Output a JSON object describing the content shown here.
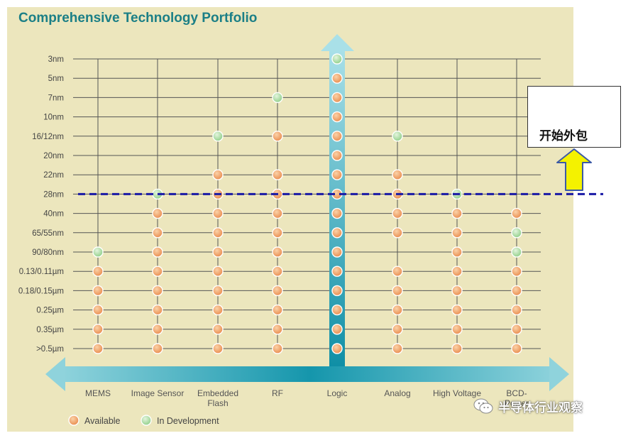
{
  "chart_data": {
    "type": "scatter",
    "title": "Comprehensive Technology Portfolio",
    "xlabel": "",
    "ylabel": "",
    "categories": [
      "MEMS",
      "Image Sensor",
      "Embedded\nFlash",
      "RF",
      "Logic",
      "Analog",
      "High Voltage",
      "BCD-\nPower"
    ],
    "nodes": [
      "3nm",
      "5nm",
      "7nm",
      "10nm",
      "16/12nm",
      "20nm",
      "22nm",
      "28nm",
      "40nm",
      "65/55nm",
      "90/80nm",
      "0.13/0.11µm",
      "0.18/0.15µm",
      "0.25µm",
      "0.35µm",
      ">0.5µm"
    ],
    "legend": [
      {
        "key": "available",
        "label": "Available"
      },
      {
        "key": "dev",
        "label": "In Development"
      }
    ],
    "legend_position": "bottom-left",
    "matrix": {
      "MEMS": [
        "",
        "",
        "",
        "",
        "",
        "",
        "",
        "",
        "",
        "",
        "dev",
        "available",
        "available",
        "available",
        "available",
        "available"
      ],
      "Image Sensor": [
        "",
        "",
        "",
        "",
        "",
        "",
        "",
        "dev",
        "available",
        "available",
        "available",
        "available",
        "available",
        "available",
        "available",
        "available"
      ],
      "Embedded\nFlash": [
        "",
        "",
        "",
        "",
        "dev",
        "",
        "available",
        "available",
        "available",
        "available",
        "available",
        "available",
        "available",
        "available",
        "available",
        "available"
      ],
      "RF": [
        "",
        "",
        "dev",
        "",
        "available",
        "",
        "available",
        "available",
        "available",
        "available",
        "available",
        "available",
        "available",
        "available",
        "available",
        "available"
      ],
      "Logic": [
        "dev",
        "available",
        "available",
        "available",
        "available",
        "available",
        "available",
        "available",
        "available",
        "available",
        "available",
        "available",
        "available",
        "available",
        "available",
        "available"
      ],
      "Analog": [
        "",
        "",
        "",
        "",
        "dev",
        "",
        "available",
        "available",
        "available",
        "available",
        "",
        "available",
        "available",
        "available",
        "available",
        "available"
      ],
      "High Voltage": [
        "",
        "",
        "",
        "",
        "",
        "",
        "",
        "dev",
        "available",
        "available",
        "available",
        "available",
        "available",
        "available",
        "available",
        "available"
      ],
      "BCD-\nPower": [
        "",
        "",
        "",
        "",
        "",
        "",
        "",
        "",
        "available",
        "dev",
        "dev",
        "available",
        "available",
        "available",
        "available",
        "available"
      ]
    },
    "annotations": {
      "dashed_line_at_node": "28nm",
      "callout_text": "开始外包"
    }
  },
  "watermark_text": "半导体行业观察",
  "colors": {
    "background": "#ece6bd",
    "title": "#1b7f86",
    "arrow": "#2aa3b3",
    "available": "#eda063",
    "dev": "#a6d9a0",
    "dashed": "#1a1aa6",
    "callout_arrow": "#f4f200"
  }
}
